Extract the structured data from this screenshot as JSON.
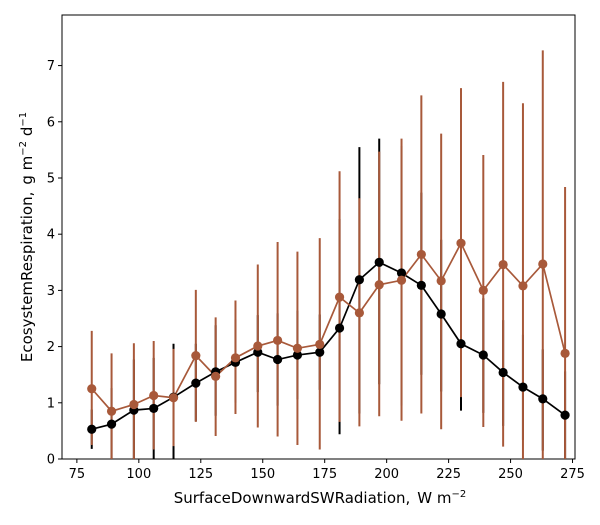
{
  "chart_data": {
    "type": "line",
    "xlabel": "SurfaceDownwardSWRadiation,",
    "xunit_text": "W m",
    "xunit_exp": "−2",
    "ylabel": "EcosystemRespiration,",
    "yunit_g": "g m",
    "yunit_exp1": "−2",
    "yunit_d": " d",
    "yunit_exp2": "−1",
    "xlim": [
      69,
      276
    ],
    "ylim": [
      0,
      7.9
    ],
    "xticks": [
      75,
      100,
      125,
      150,
      175,
      200,
      225,
      250,
      275
    ],
    "yticks": [
      0,
      1,
      2,
      3,
      4,
      5,
      6,
      7
    ],
    "grid": false,
    "x": [
      81,
      89,
      98,
      106,
      114,
      123,
      131,
      139,
      148,
      156,
      164,
      173,
      181,
      189,
      197,
      206,
      214,
      222,
      230,
      239,
      247,
      255,
      263,
      272
    ],
    "series": [
      {
        "color": "#000000",
        "values": [
          0.53,
          0.62,
          0.87,
          0.9,
          1.1,
          1.35,
          1.55,
          1.72,
          1.9,
          1.77,
          1.85,
          1.9,
          2.33,
          3.19,
          3.5,
          3.31,
          3.09,
          2.58,
          2.05,
          1.85,
          1.54,
          1.28,
          1.07,
          0.78
        ],
        "err_low": [
          0.18,
          0.0,
          0.0,
          0.0,
          0.0,
          0.67,
          0.77,
          1.0,
          1.19,
          0.95,
          1.06,
          1.23,
          0.44,
          0.81,
          1.33,
          0.95,
          1.5,
          1.2,
          0.86,
          0.82,
          0.59,
          0.34,
          0.15,
          0.0
        ],
        "err_high": [
          0.88,
          1.26,
          1.77,
          1.8,
          2.05,
          2.05,
          2.38,
          2.48,
          2.56,
          2.59,
          2.64,
          2.57,
          4.27,
          5.55,
          5.7,
          5.57,
          4.74,
          3.9,
          3.24,
          2.86,
          2.47,
          2.21,
          1.95,
          1.56
        ]
      },
      {
        "color": "#a8593a",
        "values": [
          1.25,
          0.85,
          0.97,
          1.13,
          1.09,
          1.84,
          1.47,
          1.8,
          2.01,
          2.11,
          1.97,
          2.04,
          2.88,
          2.6,
          3.1,
          3.18,
          3.64,
          3.17,
          3.84,
          3.0,
          3.46,
          3.08,
          3.47,
          1.88
        ],
        "err_low": [
          0.25,
          0.0,
          0.0,
          0.17,
          0.23,
          0.66,
          0.41,
          0.8,
          0.56,
          0.4,
          0.25,
          0.17,
          0.66,
          0.58,
          0.76,
          0.68,
          0.81,
          0.53,
          1.1,
          0.57,
          0.22,
          0.0,
          0.0,
          0.0
        ],
        "err_high": [
          2.28,
          1.88,
          2.06,
          2.1,
          1.96,
          3.01,
          2.52,
          2.82,
          3.46,
          3.86,
          3.69,
          3.93,
          5.12,
          4.64,
          5.47,
          5.7,
          6.47,
          5.79,
          6.6,
          5.41,
          6.71,
          6.33,
          7.27,
          4.84
        ]
      }
    ]
  }
}
